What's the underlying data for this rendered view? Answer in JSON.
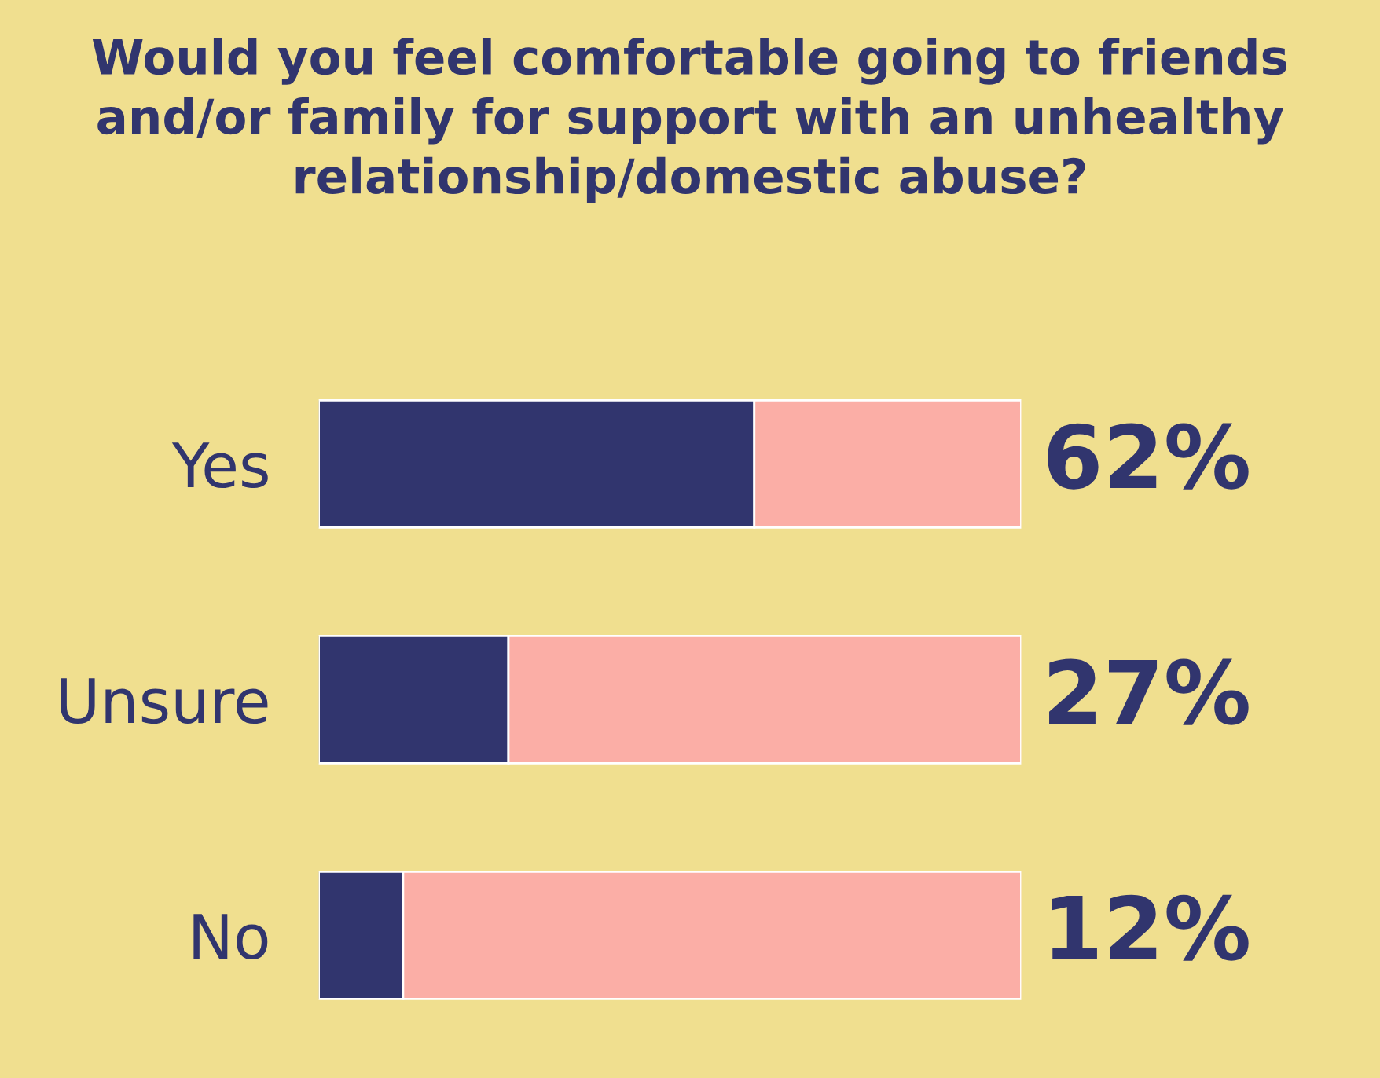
{
  "chart_data": {
    "type": "bar",
    "orientation": "horizontal",
    "stacked": true,
    "title": "Would you feel comfortable going to friends and/or family for support with an unhealthy relationship/domestic abuse?",
    "categories": [
      "Yes",
      "Unsure",
      "No"
    ],
    "series": [
      {
        "color": "#31356e",
        "values": [
          62,
          27,
          12
        ],
        "value_labels": [
          "62%",
          "27%",
          "12%"
        ]
      },
      {
        "color": "#fbaea6",
        "values": [
          38,
          73,
          88
        ]
      }
    ],
    "xlim": [
      0,
      100
    ],
    "tick_labels": "y",
    "grid": false,
    "legend": false
  }
}
